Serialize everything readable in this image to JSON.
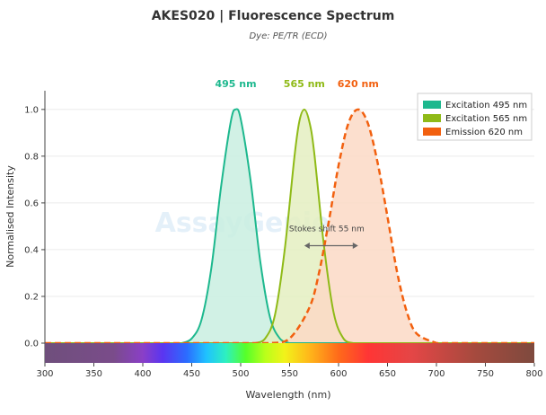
{
  "chart_data": {
    "type": "area",
    "title": "AKES020  |  Fluorescence Spectrum",
    "subtitle": "Dye: PE/TR (ECD)",
    "xlabel": "Wavelength (nm)",
    "ylabel": "Normalised Intensity",
    "xlim": [
      300,
      800
    ],
    "ylim": [
      0,
      1.08
    ],
    "x_ticks": [
      300,
      350,
      400,
      450,
      500,
      550,
      600,
      650,
      700,
      750,
      800
    ],
    "y_ticks": [
      0.0,
      0.2,
      0.4,
      0.6,
      0.8,
      1.0
    ],
    "grid": true,
    "legend_position": "top-right",
    "series": [
      {
        "name": "Excitation  495 nm",
        "style": "solid",
        "color": "#1db88e",
        "fill": "#c9eee1",
        "x": [
          440,
          450,
          460,
          470,
          480,
          490,
          495,
          500,
          510,
          520,
          530,
          540,
          550
        ],
        "y": [
          0.0,
          0.02,
          0.1,
          0.32,
          0.67,
          0.95,
          1.0,
          0.96,
          0.7,
          0.35,
          0.11,
          0.02,
          0.0
        ]
      },
      {
        "name": "Excitation  565 nm",
        "style": "solid",
        "color": "#8fba17",
        "fill": "#e4efc1",
        "x": [
          515,
          525,
          535,
          545,
          555,
          560,
          565,
          570,
          575,
          585,
          595,
          605,
          615
        ],
        "y": [
          0.0,
          0.02,
          0.12,
          0.4,
          0.8,
          0.95,
          1.0,
          0.95,
          0.82,
          0.42,
          0.13,
          0.02,
          0.0
        ]
      },
      {
        "name": "Emission  620 nm",
        "style": "dashed",
        "color": "#f2600f",
        "fill": "#fbd9c5",
        "x": [
          530,
          550,
          570,
          580,
          590,
          600,
          610,
          620,
          630,
          640,
          650,
          660,
          670,
          680,
          700
        ],
        "y": [
          0.0,
          0.02,
          0.15,
          0.3,
          0.52,
          0.76,
          0.94,
          1.0,
          0.94,
          0.77,
          0.54,
          0.3,
          0.13,
          0.04,
          0.0
        ]
      }
    ],
    "peak_labels": [
      {
        "text": "495 nm",
        "x": 495,
        "color": "#1db88e"
      },
      {
        "text": "565 nm",
        "x": 565,
        "color": "#8fba17"
      },
      {
        "text": "620 nm",
        "x": 620,
        "color": "#f2600f"
      }
    ],
    "annotation": {
      "text": "Stokes shift  55 nm",
      "from_x": 565,
      "to_x": 620,
      "y": 0.44
    },
    "watermark": "AssayGenie"
  }
}
